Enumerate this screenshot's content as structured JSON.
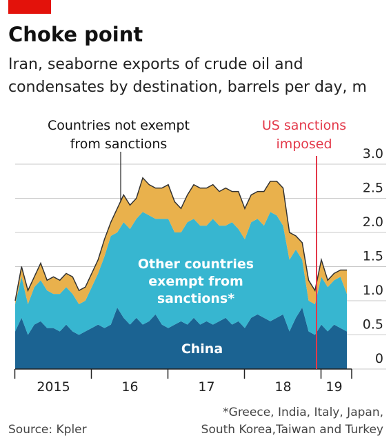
{
  "chart_data": {
    "type": "stacked_area",
    "title": "Choke point",
    "subtitle": [
      "Iran, seaborne exports of crude oil and",
      "condensates by destination, barrels per day, m"
    ],
    "categories": [
      null,
      null,
      null,
      null,
      null,
      null,
      "2015",
      null,
      null,
      null,
      null,
      null,
      null,
      null,
      null,
      null,
      null,
      null,
      "16",
      null,
      null,
      null,
      null,
      null,
      null,
      null,
      null,
      null,
      null,
      null,
      "17",
      null,
      null,
      null,
      null,
      null,
      null,
      null,
      null,
      null,
      null,
      null,
      "18",
      null,
      null,
      null,
      null,
      null,
      null,
      null,
      "19",
      null,
      null
    ],
    "series": [
      {
        "name": [
          "China"
        ],
        "color": "#1b6392",
        "values": [
          0.55,
          0.75,
          0.5,
          0.65,
          0.7,
          0.6,
          0.6,
          0.55,
          0.65,
          0.55,
          0.5,
          0.55,
          0.6,
          0.65,
          0.6,
          0.65,
          0.9,
          0.75,
          0.65,
          0.75,
          0.65,
          0.7,
          0.8,
          0.65,
          0.6,
          0.65,
          0.7,
          0.65,
          0.75,
          0.65,
          0.7,
          0.65,
          0.7,
          0.75,
          0.65,
          0.7,
          0.6,
          0.75,
          0.8,
          0.75,
          0.7,
          0.75,
          0.8,
          0.55,
          0.75,
          0.9,
          0.55,
          0.5,
          0.65,
          0.55,
          0.65,
          0.6,
          0.55
        ]
      },
      {
        "name": [
          "Other countries",
          "exempt from",
          "sanctions*"
        ],
        "color": "#37b6d0",
        "values": [
          0.4,
          0.6,
          0.45,
          0.55,
          0.6,
          0.55,
          0.5,
          0.55,
          0.55,
          0.55,
          0.45,
          0.45,
          0.6,
          0.75,
          1.05,
          1.3,
          1.1,
          1.4,
          1.4,
          1.45,
          1.65,
          1.55,
          1.4,
          1.55,
          1.6,
          1.35,
          1.3,
          1.5,
          1.45,
          1.45,
          1.4,
          1.55,
          1.4,
          1.35,
          1.5,
          1.35,
          1.3,
          1.4,
          1.4,
          1.35,
          1.6,
          1.5,
          1.3,
          1.05,
          1.0,
          0.7,
          0.45,
          0.45,
          0.7,
          0.65,
          0.65,
          0.75,
          0.55
        ]
      },
      {
        "name": [
          "Countries not exempt",
          "from sanctions"
        ],
        "color": "#e9b14c",
        "values": [
          0.05,
          0.15,
          0.2,
          0.15,
          0.25,
          0.15,
          0.25,
          0.2,
          0.2,
          0.25,
          0.2,
          0.2,
          0.2,
          0.2,
          0.25,
          0.2,
          0.35,
          0.4,
          0.35,
          0.3,
          0.5,
          0.45,
          0.45,
          0.45,
          0.5,
          0.45,
          0.35,
          0.4,
          0.5,
          0.55,
          0.55,
          0.5,
          0.5,
          0.55,
          0.45,
          0.55,
          0.45,
          0.4,
          0.4,
          0.5,
          0.45,
          0.5,
          0.55,
          0.4,
          0.2,
          0.25,
          0.3,
          0.2,
          0.25,
          0.1,
          0.1,
          0.1,
          0.35
        ]
      }
    ],
    "ylim": [
      0,
      3
    ],
    "yticks": [
      0,
      0.5,
      {
        "value": 1,
        "label": "1.0"
      },
      1.5,
      {
        "value": 2,
        "label": "2.0"
      },
      2.5,
      {
        "value": 3,
        "label": "3.0"
      }
    ],
    "grid": true,
    "annotation": [
      "US sanctions",
      "imposed"
    ],
    "source": "Source: Kpler",
    "footnote": [
      "*Greece, India, Italy, Japan,",
      "South Korea,Taiwan and Turkey"
    ]
  }
}
